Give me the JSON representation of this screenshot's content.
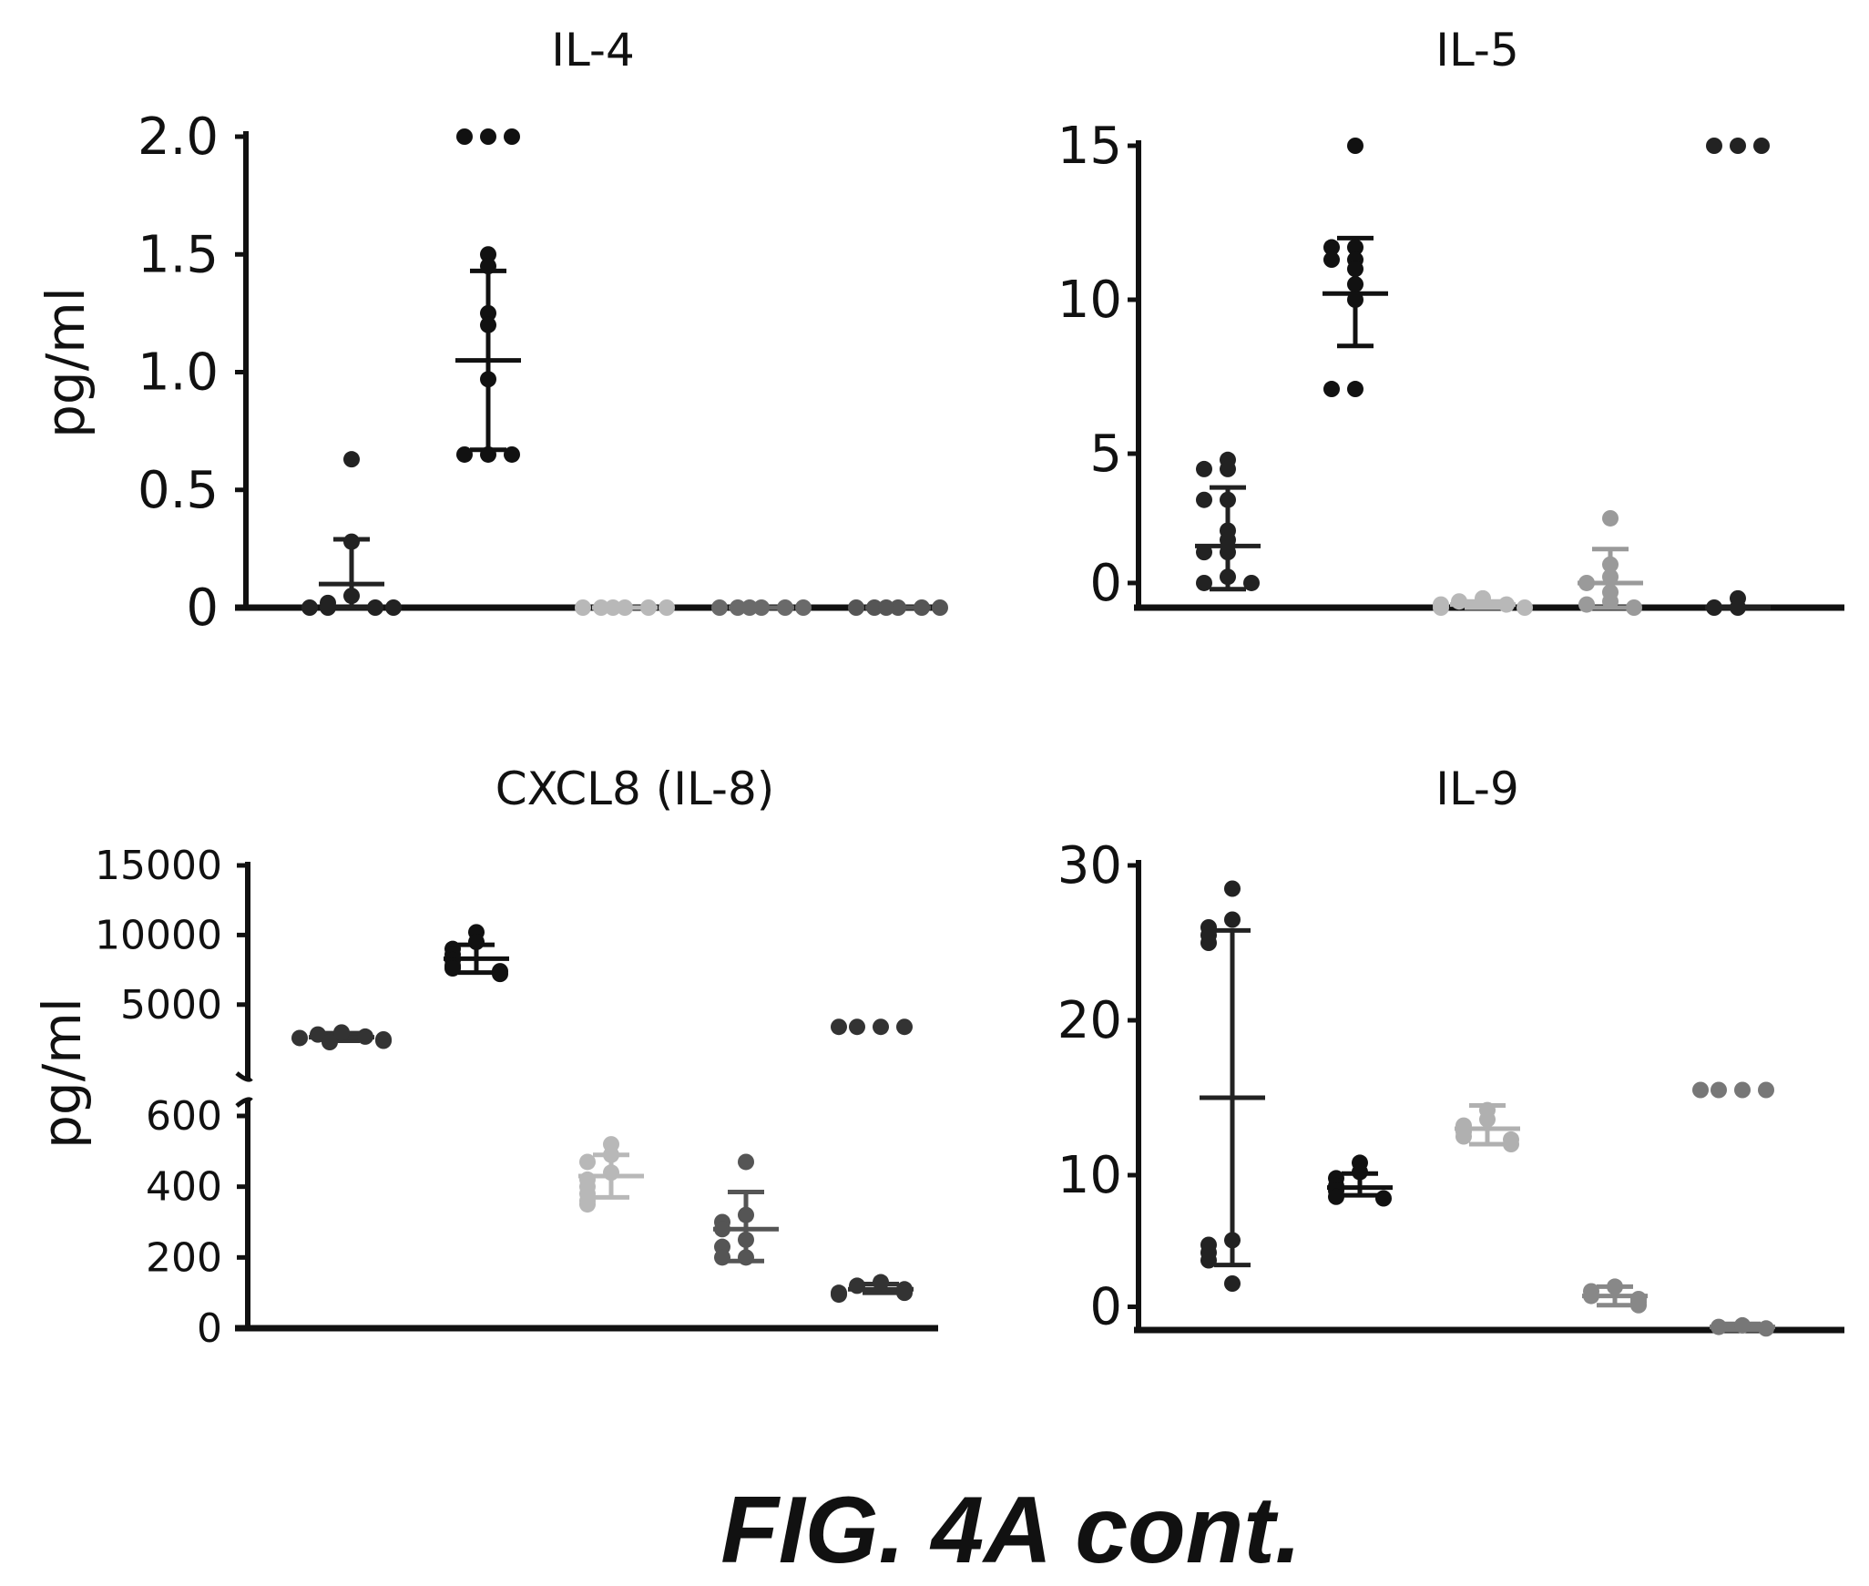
{
  "figure_caption": "FIG. 4A cont.",
  "chart_data": [
    {
      "type": "scatter",
      "title": "IL-4",
      "ylabel": "pg/ml",
      "xlabel": "",
      "ylim": [
        0,
        2.0
      ],
      "y_ticks": [
        "0",
        "0.5",
        "1.0",
        "1.5",
        "2.0"
      ],
      "y_tick_values": [
        0,
        0.5,
        1.0,
        1.5,
        2.0
      ],
      "colors": [
        "#222222",
        "#111111",
        "#b8b8b8",
        "#6a6a6a",
        "#555555"
      ],
      "groups": [
        {
          "values": [
            0.63,
            0.28,
            0.05,
            0.02,
            0.0,
            0.0,
            0.0,
            0.0
          ],
          "mean": 0.1,
          "sd_low": 0.0,
          "sd_high": 0.29
        },
        {
          "values": [
            2.0,
            2.0,
            2.0,
            1.5,
            1.45,
            1.25,
            1.2,
            0.97,
            0.65,
            0.65,
            0.65
          ],
          "mean": 1.05,
          "sd_low": 0.67,
          "sd_high": 1.43
        },
        {
          "values": [
            0,
            0,
            0,
            0,
            0,
            0
          ],
          "mean": 0,
          "sd_low": 0,
          "sd_high": 0
        },
        {
          "values": [
            0,
            0,
            0,
            0,
            0,
            0
          ],
          "mean": 0,
          "sd_low": 0,
          "sd_high": 0
        },
        {
          "values": [
            0,
            0,
            0,
            0,
            0,
            0
          ],
          "mean": 0,
          "sd_low": 0,
          "sd_high": 0
        }
      ]
    },
    {
      "type": "scatter",
      "title": "IL-5",
      "ylabel": "",
      "xlabel": "",
      "ylim": [
        0,
        15
      ],
      "y_ticks": [
        "0",
        "5",
        "10",
        "15"
      ],
      "y_tick_values": [
        0.8,
        5,
        10,
        15
      ],
      "colors": [
        "#222222",
        "#111111",
        "#b8b8b8",
        "#9a9a9a",
        "#222222"
      ],
      "groups": [
        {
          "values": [
            4.8,
            4.5,
            4.5,
            3.5,
            3.5,
            2.5,
            2.2,
            1.8,
            1.8,
            1.0,
            0.8,
            0.8
          ],
          "mean": 2.0,
          "sd_low": 0.6,
          "sd_high": 3.9
        },
        {
          "values": [
            15,
            11.7,
            11.7,
            11.3,
            11.3,
            11.0,
            10.5,
            10.0,
            7.1,
            7.1
          ],
          "mean": 10.2,
          "sd_low": 8.5,
          "sd_high": 12.0
        },
        {
          "values": [
            0.3,
            0.2,
            0.1,
            0.1,
            0.0,
            0.0
          ],
          "mean": 0.1,
          "sd_low": 0,
          "sd_high": 0.2
        },
        {
          "values": [
            2.9,
            1.4,
            1.0,
            0.8,
            0.5,
            0.2,
            0.1,
            0.0
          ],
          "mean": 0.8,
          "sd_low": 0,
          "sd_high": 1.9
        },
        {
          "values": [
            15,
            15,
            15,
            0.3,
            0.0,
            0.0
          ],
          "mean": 0.0,
          "sd_low": 0,
          "sd_high": 0
        }
      ]
    },
    {
      "type": "scatter",
      "title": "CXCL8 (IL-8)",
      "ylabel": "pg/ml",
      "xlabel": "",
      "broken_axis": true,
      "ylim_lower": [
        0,
        600
      ],
      "ylim_upper": [
        600,
        15000
      ],
      "y_ticks_lower": [
        "0",
        "200",
        "400",
        "600"
      ],
      "y_ticks_upper": [
        "5000",
        "10000",
        "15000"
      ],
      "y_tick_values_lower": [
        0,
        200,
        400,
        600
      ],
      "y_tick_values_upper": [
        5000,
        10000,
        15000
      ],
      "colors": [
        "#333333",
        "#111111",
        "#b8b8b8",
        "#555555",
        "#333333"
      ],
      "groups": [
        {
          "values": [
            3000,
            2850,
            2700,
            2600,
            2500,
            2400,
            2300
          ],
          "mean": 2650,
          "sd_low": 2400,
          "sd_high": 2950
        },
        {
          "values": [
            10200,
            9500,
            9000,
            8600,
            8200,
            7800,
            7600,
            7400,
            7200
          ],
          "mean": 8300,
          "sd_low": 7300,
          "sd_high": 9300
        },
        {
          "values": [
            520,
            490,
            470,
            440,
            420,
            400,
            380,
            360,
            350
          ],
          "mean": 430,
          "sd_low": 370,
          "sd_high": 490
        },
        {
          "values": [
            470,
            320,
            300,
            280,
            250,
            230,
            200,
            200
          ],
          "mean": 280,
          "sd_low": 190,
          "sd_high": 385
        },
        {
          "values": [
            3400,
            3400,
            3400,
            3400,
            130,
            120,
            110,
            100,
            100,
            95
          ],
          "mean": 110,
          "sd_low": 100,
          "sd_high": 125
        }
      ]
    },
    {
      "type": "scatter",
      "title": "IL-9",
      "ylabel": "",
      "xlabel": "",
      "ylim": [
        0,
        30
      ],
      "y_ticks": [
        "0",
        "10",
        "20",
        "30"
      ],
      "y_tick_values": [
        1.5,
        10,
        20,
        30
      ],
      "colors": [
        "#222222",
        "#111111",
        "#b0b0b0",
        "#888888",
        "#777777"
      ],
      "groups": [
        {
          "values": [
            28.5,
            26.5,
            26,
            25.5,
            25,
            5.8,
            5.5,
            5.0,
            4.5,
            3.0
          ],
          "mean": 15.0,
          "sd_low": 4.2,
          "sd_high": 25.8
        },
        {
          "values": [
            10.8,
            10.2,
            9.8,
            9.3,
            9.0,
            8.6,
            8.5
          ],
          "mean": 9.2,
          "sd_low": 8.7,
          "sd_high": 10.1
        },
        {
          "values": [
            14.2,
            13.6,
            13.2,
            12.8,
            12.5,
            12.3,
            12.0
          ],
          "mean": 13.0,
          "sd_low": 12.0,
          "sd_high": 14.5
        },
        {
          "values": [
            2.8,
            2.5,
            2.2,
            2.0,
            1.8,
            1.6
          ],
          "mean": 2.2,
          "sd_low": 1.6,
          "sd_high": 2.8
        },
        {
          "values": [
            15.5,
            15.5,
            15.5,
            15.5,
            0.3,
            0.2,
            0.1
          ],
          "mean": 0.2,
          "sd_low": 0.0,
          "sd_high": 0.4
        }
      ]
    }
  ]
}
